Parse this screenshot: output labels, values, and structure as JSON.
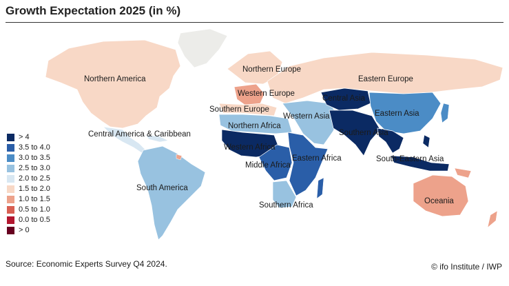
{
  "title": "Growth Expectation 2025 (in %)",
  "legend": [
    {
      "label": "> 4",
      "color": "#0b2a63"
    },
    {
      "label": "3.5 to 4.0",
      "color": "#2a5ea8"
    },
    {
      "label": "3.0 to 3.5",
      "color": "#4b8cc6"
    },
    {
      "label": "2.5 to 3.0",
      "color": "#98c2e0"
    },
    {
      "label": "2.0 to 2.5",
      "color": "#d8e7f2"
    },
    {
      "label": "1.5 to 2.0",
      "color": "#f8d8c6"
    },
    {
      "label": "1.0 to 1.5",
      "color": "#eda28b"
    },
    {
      "label": "0.5 to 1.0",
      "color": "#d85f52"
    },
    {
      "label": "0.0 to 0.5",
      "color": "#b3172f"
    },
    {
      "label": "> 0",
      "color": "#67001f"
    }
  ],
  "regions": {
    "northern_america": "Northern America",
    "central_america": "Central America & Caribbean",
    "south_america": "South America",
    "northern_europe": "Northern Europe",
    "western_europe": "Western Europe",
    "southern_europe": "Southern Europe",
    "eastern_europe": "Eastern Europe",
    "northern_africa": "Northern Africa",
    "western_africa": "Western Africa",
    "middle_africa": "Middle Africa",
    "eastern_africa": "Eastern Africa",
    "southern_africa": "Southern Africa",
    "western_asia": "Western Asia",
    "central_asia": "Central Asia",
    "southern_asia": "Southern Asia",
    "eastern_asia": "Eastern Asia",
    "south_eastern_asia": "South-Eastern Asia",
    "oceania": "Oceania"
  },
  "source": "Source: Economic Experts Survey Q4 2024.",
  "credit": "© ifo Institute / IWP"
}
